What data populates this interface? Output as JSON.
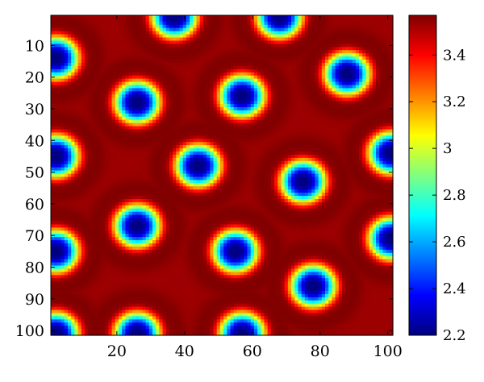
{
  "chart_data": {
    "type": "heatmap",
    "title": "",
    "xlabel": "",
    "ylabel": "",
    "grid_size": [
      101,
      101
    ],
    "xlim": [
      1,
      101
    ],
    "ylim": [
      1,
      101
    ],
    "y_axis_direction": "top-to-bottom",
    "x_ticks": [
      20,
      40,
      60,
      80,
      100
    ],
    "y_ticks": [
      10,
      20,
      30,
      40,
      50,
      60,
      70,
      80,
      90,
      100
    ],
    "x_tick_labels": [
      "20",
      "40",
      "60",
      "80",
      "100"
    ],
    "y_tick_labels": [
      "10",
      "20",
      "30",
      "40",
      "50",
      "60",
      "70",
      "80",
      "90",
      "100"
    ],
    "colormap": "jet",
    "colorbar": {
      "range": [
        2.2,
        3.57
      ],
      "ticks": [
        2.2,
        2.4,
        2.6,
        2.8,
        3.0,
        3.2,
        3.4
      ],
      "tick_labels": [
        "2.2",
        "2.4",
        "2.6",
        "2.8",
        "3",
        "3.2",
        "3.4"
      ]
    },
    "background_value": 3.53,
    "spot_value": 2.2,
    "spot_radius": 9.5,
    "spot_centers": [
      {
        "x": 37,
        "y": 1
      },
      {
        "x": 68,
        "y": 1
      },
      {
        "x": 2,
        "y": 14
      },
      {
        "x": 88,
        "y": 19
      },
      {
        "x": 26,
        "y": 28
      },
      {
        "x": 57,
        "y": 26
      },
      {
        "x": 2,
        "y": 45
      },
      {
        "x": 101,
        "y": 44
      },
      {
        "x": 44,
        "y": 48
      },
      {
        "x": 75,
        "y": 53
      },
      {
        "x": 26,
        "y": 67
      },
      {
        "x": 2,
        "y": 75
      },
      {
        "x": 101,
        "y": 71
      },
      {
        "x": 55,
        "y": 75
      },
      {
        "x": 78,
        "y": 86
      },
      {
        "x": 26,
        "y": 101
      },
      {
        "x": 57,
        "y": 101
      },
      {
        "x": 2,
        "y": 101
      }
    ]
  }
}
